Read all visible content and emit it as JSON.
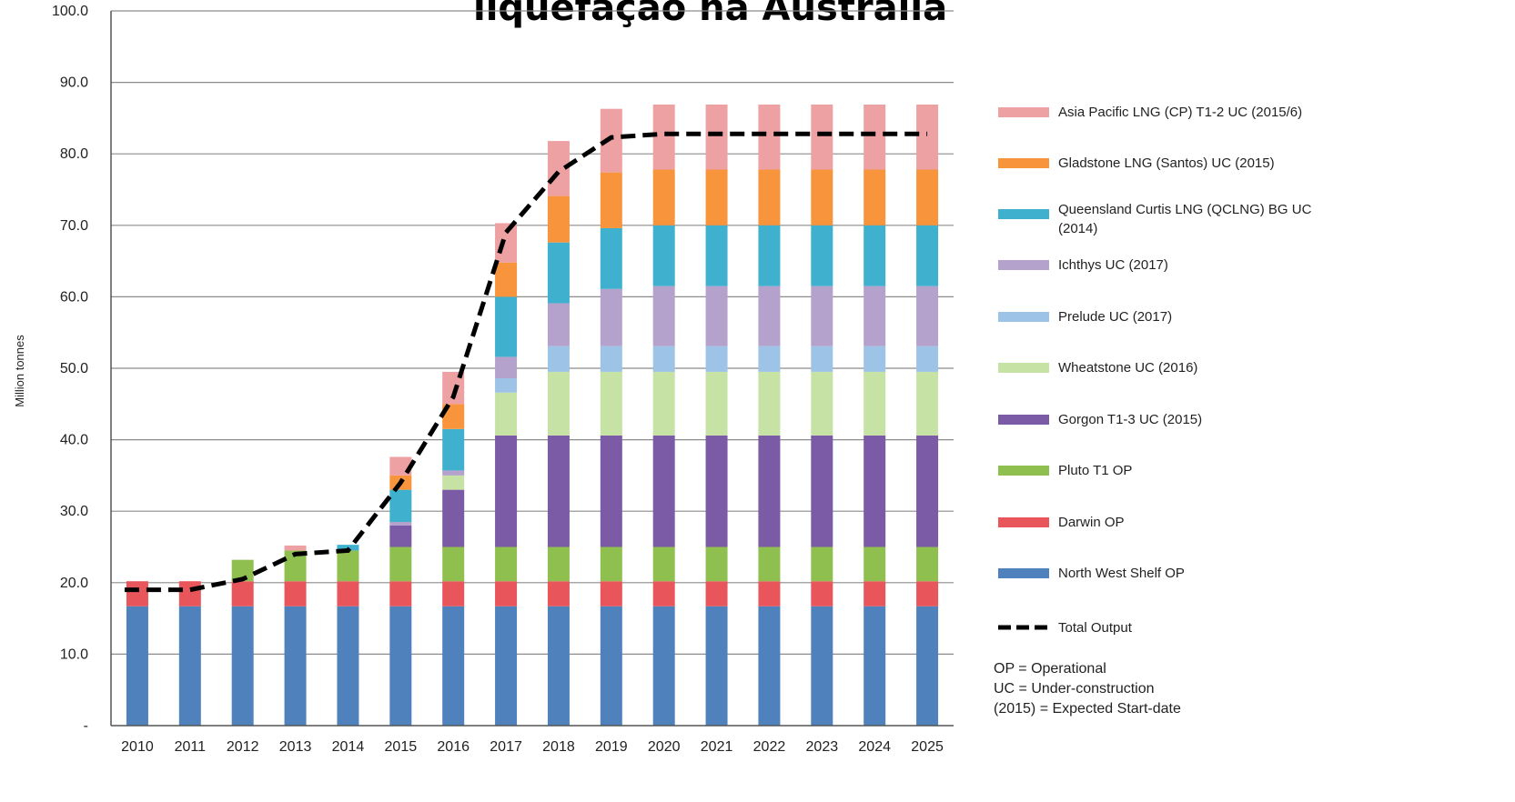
{
  "chart_data": {
    "type": "bar",
    "stacked": true,
    "title": "liquefação na Austrália",
    "ylabel": "Million tonnes",
    "xlabel": "",
    "ylim": [
      0,
      100
    ],
    "yticks": [
      "-",
      "10.0",
      "20.0",
      "30.0",
      "40.0",
      "50.0",
      "60.0",
      "70.0",
      "80.0",
      "90.0",
      "100.0"
    ],
    "grid": true,
    "legend_position": "right",
    "categories": [
      "2010",
      "2011",
      "2012",
      "2013",
      "2014",
      "2015",
      "2016",
      "2017",
      "2018",
      "2019",
      "2020",
      "2021",
      "2022",
      "2023",
      "2024",
      "2025"
    ],
    "series": [
      {
        "name": "North West Shelf OP",
        "color": "#4f81bd",
        "values": [
          16.7,
          16.7,
          16.7,
          16.7,
          16.7,
          16.7,
          16.7,
          16.7,
          16.7,
          16.7,
          16.7,
          16.7,
          16.7,
          16.7,
          16.7,
          16.7
        ]
      },
      {
        "name": "Darwin OP",
        "color": "#e8555a",
        "values": [
          3.5,
          3.5,
          3.5,
          3.5,
          3.5,
          3.5,
          3.5,
          3.5,
          3.5,
          3.5,
          3.5,
          3.5,
          3.5,
          3.5,
          3.5,
          3.5
        ]
      },
      {
        "name": "Pluto T1 OP",
        "color": "#8fc04f",
        "values": [
          0,
          0,
          3,
          4.3,
          4.3,
          4.8,
          4.8,
          4.8,
          4.8,
          4.8,
          4.8,
          4.8,
          4.8,
          4.8,
          4.8,
          4.8
        ]
      },
      {
        "name": "Gorgon T1-3 UC (2015)",
        "color": "#7b5aa6",
        "values": [
          0,
          0,
          0,
          0,
          0,
          3,
          8,
          15.6,
          15.6,
          15.6,
          15.6,
          15.6,
          15.6,
          15.6,
          15.6,
          15.6
        ]
      },
      {
        "name": "Wheatstone UC (2016)",
        "color": "#c6e3a5",
        "values": [
          0,
          0,
          0,
          0,
          0,
          0,
          2,
          6,
          8.9,
          8.9,
          8.9,
          8.9,
          8.9,
          8.9,
          8.9,
          8.9
        ]
      },
      {
        "name": "Prelude UC (2017)",
        "color": "#9dc3e6",
        "values": [
          0,
          0,
          0,
          0,
          0,
          0,
          0,
          2,
          3.6,
          3.6,
          3.6,
          3.6,
          3.6,
          3.6,
          3.6,
          3.6
        ]
      },
      {
        "name": "Ichthys UC (2017)",
        "color": "#b4a2cd",
        "values": [
          0,
          0,
          0,
          0,
          0,
          0.5,
          0.7,
          3,
          6,
          8,
          8.4,
          8.4,
          8.4,
          8.4,
          8.4,
          8.4
        ]
      },
      {
        "name": "Queensland Curtis LNG (QCLNG) BG UC (2014)",
        "color": "#3fb1cf",
        "values": [
          0,
          0,
          0,
          0,
          0.8,
          4.5,
          5.8,
          8.4,
          8.5,
          8.5,
          8.5,
          8.5,
          8.5,
          8.5,
          8.5,
          8.5
        ]
      },
      {
        "name": "Gladstone LNG (Santos) UC (2015)",
        "color": "#f7943c",
        "values": [
          0,
          0,
          0,
          0,
          0,
          2,
          3.5,
          4.8,
          6.5,
          7.8,
          7.8,
          7.8,
          7.8,
          7.8,
          7.8,
          7.8
        ]
      },
      {
        "name": "Asia Pacific LNG (CP) T1-2 UC (2015/6)",
        "color": "#eea1a3",
        "values": [
          0,
          0,
          0,
          0.7,
          0,
          2.6,
          4.5,
          5.5,
          7.7,
          8.9,
          9.1,
          9.1,
          9.1,
          9.1,
          9.1,
          9.1
        ]
      }
    ],
    "total_output": {
      "name": "Total Output",
      "values": [
        19,
        19,
        20.5,
        24,
        24.5,
        34,
        46,
        69,
        77.5,
        82.3,
        82.8,
        82.8,
        82.8,
        82.8,
        82.8,
        82.8
      ]
    },
    "legend_labels": [
      "Asia Pacific LNG (CP) T1-2 UC (2015/6)",
      "Gladstone LNG (Santos) UC (2015)",
      "Queensland Curtis LNG (QCLNG) BG UC",
      "(2014)",
      "Ichthys UC (2017)",
      "Prelude UC (2017)",
      "Wheatstone UC (2016)",
      "Gorgon T1-3 UC (2015)",
      "Pluto T1 OP",
      "Darwin OP",
      "North West Shelf OP",
      "Total Output"
    ],
    "notes": [
      "OP = Operational",
      "UC = Under-construction",
      "(2015) = Expected Start-date"
    ]
  }
}
